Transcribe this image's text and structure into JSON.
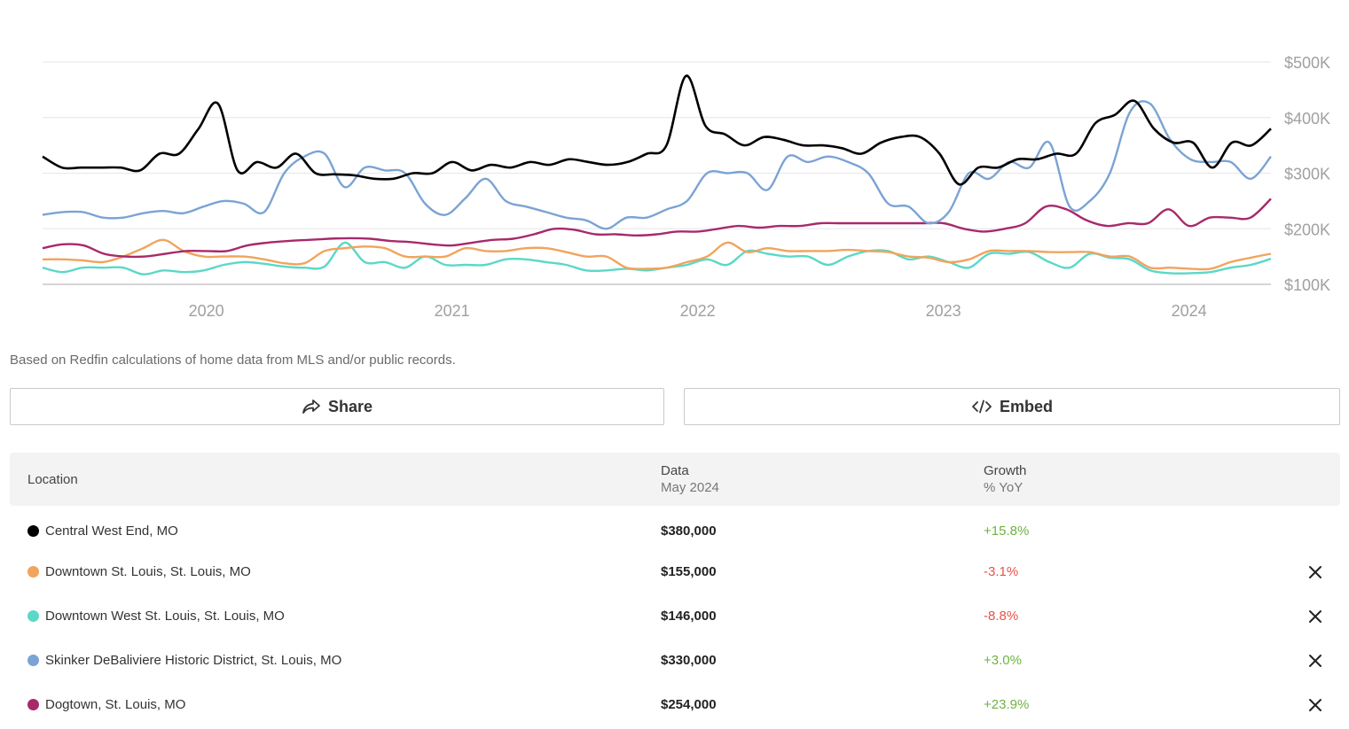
{
  "chart_data": {
    "type": "line",
    "x_ticks": [
      "2020",
      "2021",
      "2022",
      "2023",
      "2024"
    ],
    "y_ticks": [
      "$100K",
      "$200K",
      "$300K",
      "$400K",
      "$500K"
    ],
    "ylim": [
      100000,
      500000
    ],
    "x_range": [
      "2019-05",
      "2024-05"
    ],
    "grid": true,
    "series": [
      {
        "name": "Central West End, MO",
        "color": "#000000",
        "values": [
          330,
          310,
          310,
          310,
          310,
          305,
          335,
          335,
          380,
          425,
          305,
          320,
          310,
          335,
          300,
          298,
          296,
          290,
          290,
          300,
          300,
          320,
          305,
          315,
          310,
          320,
          315,
          325,
          320,
          315,
          320,
          335,
          350,
          475,
          385,
          370,
          350,
          365,
          360,
          350,
          350,
          345,
          335,
          355,
          365,
          365,
          335,
          280,
          310,
          310,
          325,
          325,
          335,
          335,
          390,
          405,
          430,
          380,
          355,
          355,
          310,
          355,
          350,
          380
        ]
      },
      {
        "name": "Skinker DeBaliviere Historic District, St. Louis, MO",
        "color": "#7ba3d4",
        "values": [
          225,
          230,
          230,
          220,
          220,
          228,
          232,
          228,
          240,
          250,
          245,
          230,
          300,
          330,
          335,
          275,
          310,
          305,
          300,
          245,
          225,
          255,
          290,
          250,
          240,
          230,
          220,
          215,
          200,
          220,
          220,
          235,
          250,
          300,
          300,
          300,
          270,
          330,
          320,
          330,
          320,
          300,
          245,
          240,
          210,
          230,
          300,
          290,
          320,
          310,
          355,
          240,
          250,
          300,
          410,
          425,
          360,
          325,
          320,
          320,
          290,
          330
        ]
      },
      {
        "name": "Dogtown, St. Louis, MO",
        "color": "#a8296a",
        "values": [
          165,
          172,
          170,
          155,
          150,
          150,
          155,
          160,
          160,
          160,
          170,
          175,
          178,
          180,
          182,
          183,
          182,
          178,
          176,
          172,
          170,
          175,
          180,
          182,
          190,
          200,
          198,
          190,
          190,
          188,
          190,
          195,
          195,
          200,
          205,
          202,
          205,
          205,
          210,
          210,
          210,
          210,
          210,
          210,
          210,
          200,
          195,
          200,
          210,
          240,
          235,
          215,
          205,
          210,
          210,
          235,
          205,
          220,
          220,
          220,
          254
        ]
      },
      {
        "name": "Downtown St. Louis, St. Louis, MO",
        "color": "#f0a45c",
        "values": [
          145,
          145,
          143,
          140,
          150,
          165,
          180,
          160,
          150,
          150,
          150,
          145,
          138,
          138,
          160,
          165,
          168,
          165,
          150,
          150,
          150,
          165,
          160,
          160,
          165,
          165,
          158,
          150,
          150,
          130,
          128,
          130,
          140,
          150,
          175,
          158,
          165,
          160,
          160,
          160,
          162,
          160,
          158,
          150,
          148,
          140,
          145,
          160,
          160,
          160,
          158,
          158,
          158,
          150,
          150,
          130,
          130,
          128,
          128,
          140,
          148,
          155
        ]
      },
      {
        "name": "Downtown West St. Louis, St. Louis, MO",
        "color": "#5ad8c8",
        "values": [
          130,
          122,
          130,
          130,
          130,
          118,
          125,
          122,
          125,
          135,
          140,
          137,
          132,
          130,
          132,
          175,
          140,
          140,
          130,
          150,
          135,
          135,
          135,
          145,
          145,
          140,
          135,
          125,
          125,
          128,
          125,
          130,
          135,
          145,
          135,
          160,
          155,
          150,
          150,
          135,
          150,
          160,
          160,
          145,
          150,
          140,
          130,
          155,
          155,
          158,
          140,
          130,
          155,
          148,
          145,
          125,
          120,
          120,
          122,
          130,
          135,
          146
        ]
      }
    ]
  },
  "source_note": "Based on Redfin calculations of home data from MLS and/or public records.",
  "actions": {
    "share_label": "Share",
    "embed_label": "Embed"
  },
  "table": {
    "headers": {
      "location": "Location",
      "data": "Data",
      "data_sub": "May 2024",
      "growth": "Growth",
      "growth_sub": "% YoY"
    },
    "rows": [
      {
        "location": "Central West End, MO",
        "color": "#000000",
        "value": "$380,000",
        "growth": "+15.8%",
        "growth_color": "#6cb33f",
        "removable": false
      },
      {
        "location": "Downtown St. Louis, St. Louis, MO",
        "color": "#f0a45c",
        "value": "$155,000",
        "growth": "-3.1%",
        "growth_color": "#e5534b",
        "removable": true
      },
      {
        "location": "Downtown West St. Louis, St. Louis, MO",
        "color": "#5ad8c8",
        "value": "$146,000",
        "growth": "-8.8%",
        "growth_color": "#e5534b",
        "removable": true
      },
      {
        "location": "Skinker DeBaliviere Historic District, St. Louis, MO",
        "color": "#7ba3d4",
        "value": "$330,000",
        "growth": "+3.0%",
        "growth_color": "#6cb33f",
        "removable": true
      },
      {
        "location": "Dogtown, St. Louis, MO",
        "color": "#a8296a",
        "value": "$254,000",
        "growth": "+23.9%",
        "growth_color": "#6cb33f",
        "removable": true
      }
    ]
  }
}
